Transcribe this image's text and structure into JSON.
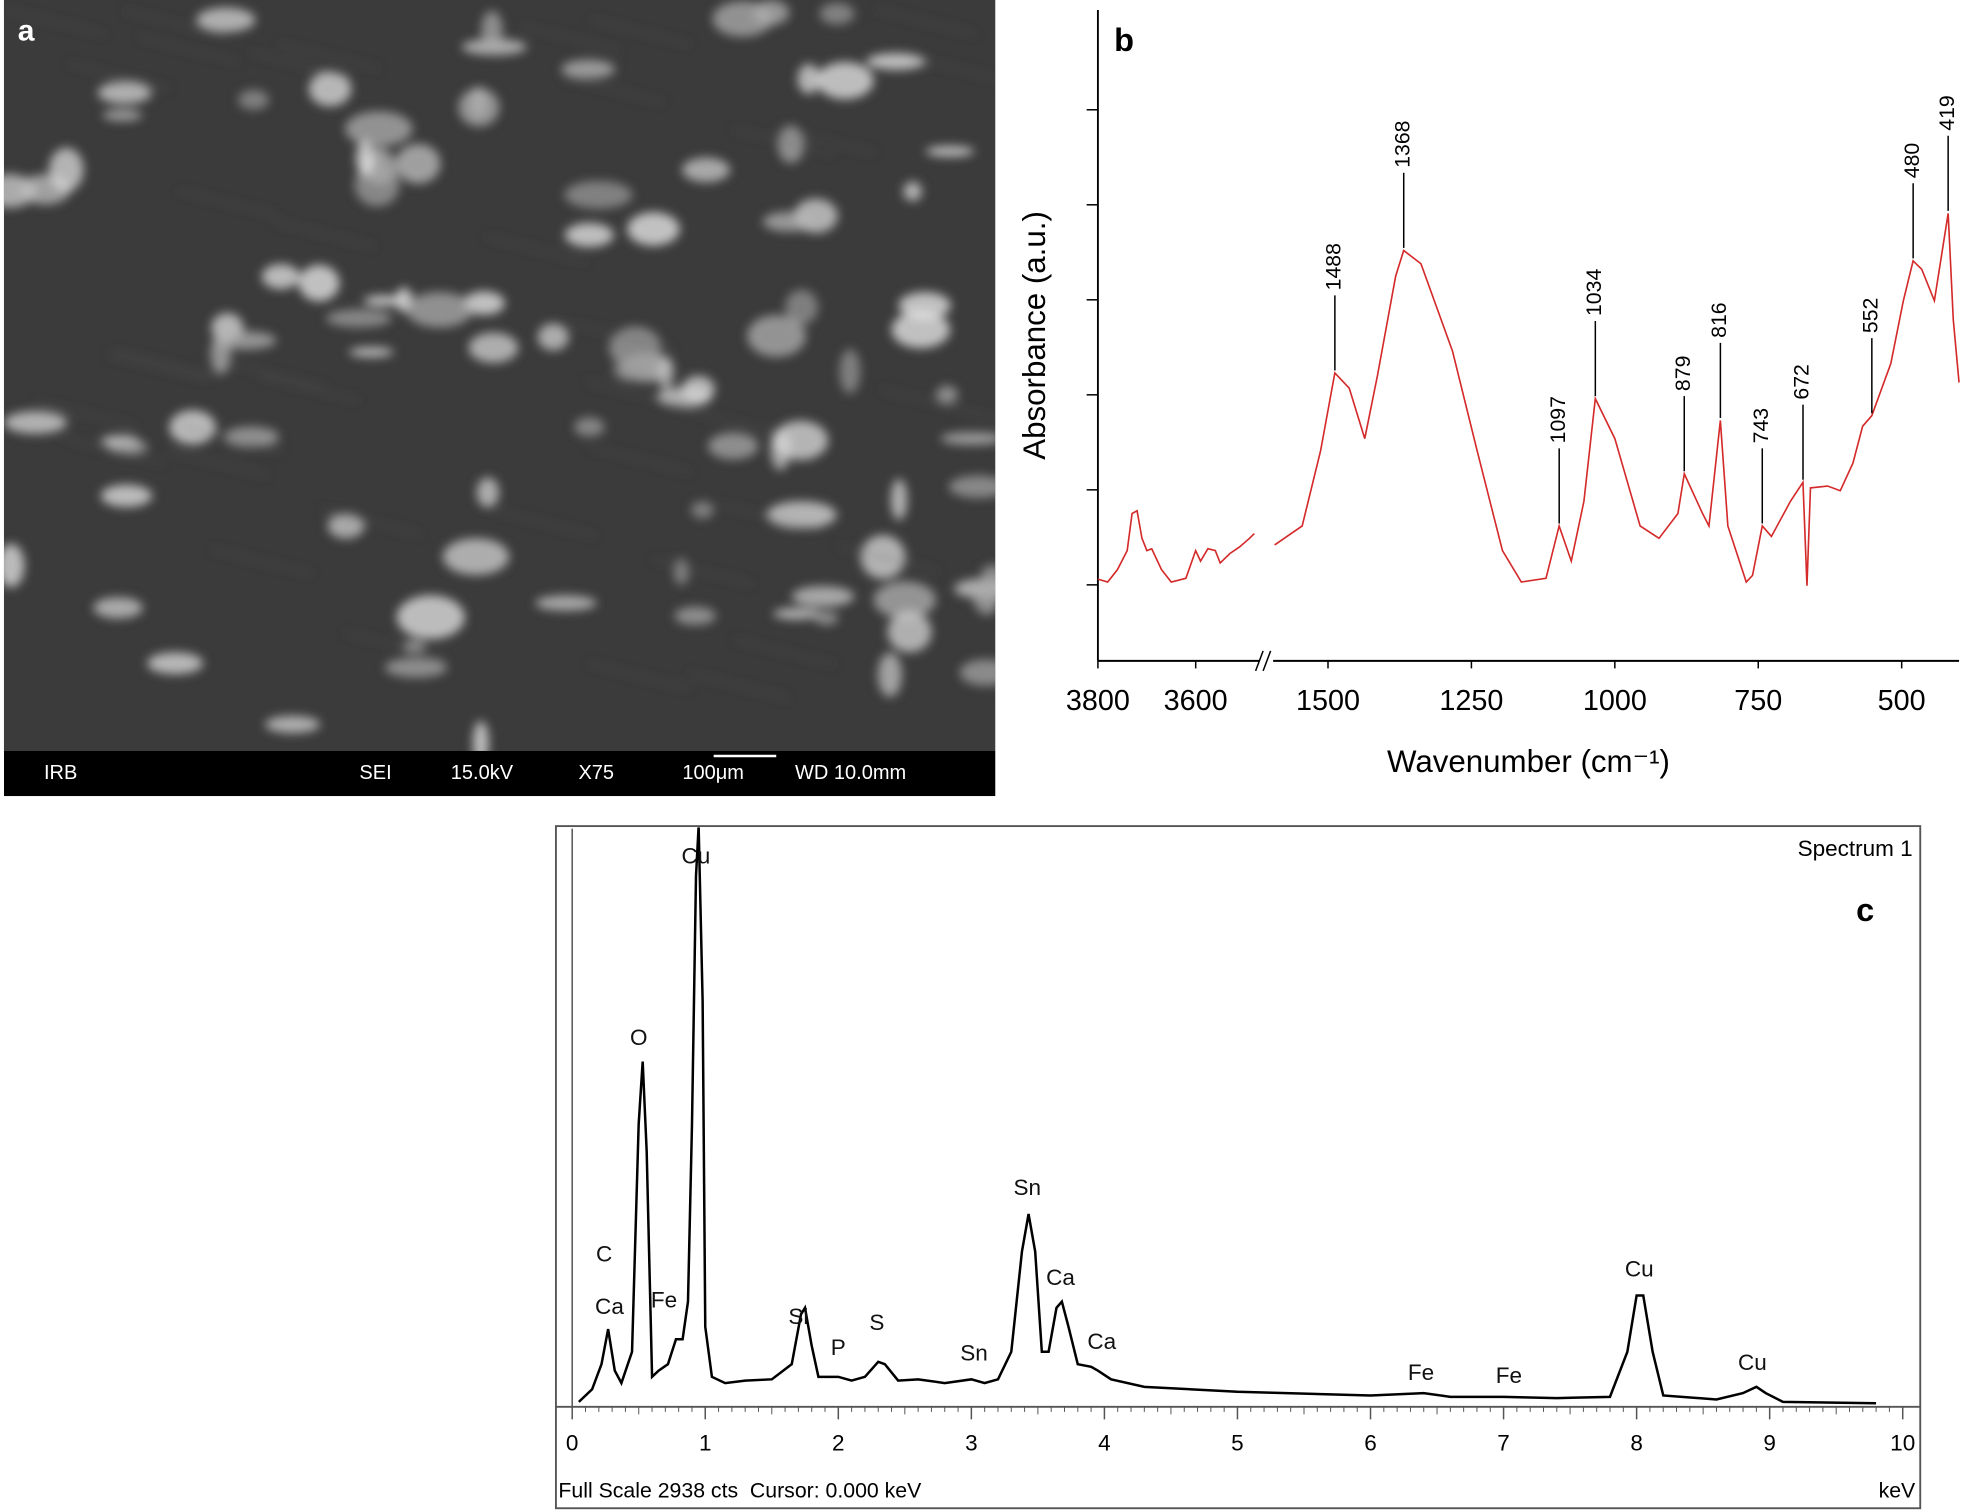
{
  "image_panel": {
    "label": "a",
    "info_bar": [
      "IRB",
      "SEI",
      "15.0kV",
      "X75",
      "100μm",
      "WD 10.0mm"
    ]
  },
  "chart_data": [
    {
      "type": "line",
      "panel_label": "b",
      "xlabel": "Wavenumber (cm⁻¹)",
      "ylabel": "Absorbance (a.u.)",
      "xlim": [
        3800,
        400
      ],
      "x_break": [
        3480,
        1600
      ],
      "xticks": [
        3800,
        3600,
        1500,
        1250,
        1000,
        750,
        500
      ],
      "ylim": [
        0.2,
        7.05
      ],
      "yticks": [
        1,
        2,
        3,
        4,
        5,
        6
      ],
      "ytick_labels": false,
      "series": [
        {
          "color": "#d42a2a",
          "x": [
            3800,
            3780,
            3760,
            3740,
            3730,
            3720,
            3710,
            3700,
            3690,
            3670,
            3650,
            3620,
            3600,
            3590,
            3575,
            3560,
            3550,
            3530,
            3510,
            3490,
            3480,
            null,
            1593,
            1545,
            1513,
            1488,
            1463,
            1436,
            1414,
            1382,
            1368,
            1338,
            1283,
            1240,
            1196,
            1163,
            1120,
            1097,
            1076,
            1054,
            1034,
            1000,
            956,
            923,
            890,
            879,
            847,
            836,
            816,
            803,
            771,
            760,
            743,
            727,
            694,
            672,
            665,
            659,
            629,
            607,
            585,
            568,
            552,
            519,
            497,
            480,
            465,
            443,
            419,
            410,
            400
          ],
          "values": [
            1.06,
            1.03,
            1.16,
            1.36,
            1.75,
            1.78,
            1.49,
            1.36,
            1.38,
            1.16,
            1.03,
            1.07,
            1.36,
            1.25,
            1.38,
            1.36,
            1.23,
            1.33,
            1.4,
            1.49,
            1.54,
            null,
            1.42,
            1.62,
            2.41,
            3.23,
            3.07,
            2.54,
            3.2,
            4.25,
            4.52,
            4.38,
            3.46,
            2.41,
            1.36,
            1.03,
            1.07,
            1.62,
            1.25,
            1.88,
            2.96,
            2.54,
            1.62,
            1.49,
            1.75,
            2.17,
            1.75,
            1.62,
            2.73,
            1.62,
            1.03,
            1.1,
            1.62,
            1.51,
            1.88,
            2.08,
            0.99,
            2.02,
            2.04,
            1.99,
            2.28,
            2.67,
            2.78,
            3.33,
            3.99,
            4.41,
            4.32,
            3.99,
            4.91,
            3.79,
            3.13
          ]
        }
      ],
      "peaks": [
        1488,
        1368,
        1097,
        1034,
        879,
        816,
        743,
        672,
        552,
        480,
        419
      ]
    },
    {
      "type": "spectrum",
      "title": "Spectrum 1",
      "panel_label": "c",
      "xlabel": "keV",
      "footer": "Full Scale 2938 cts  Cursor: 0.000 keV",
      "xlim": [
        0,
        10
      ],
      "xticks": [
        0,
        1,
        2,
        3,
        4,
        5,
        6,
        7,
        8,
        9,
        10
      ],
      "ylim": [
        0,
        2938
      ],
      "color": "#000000",
      "x": [
        0.05,
        0.15,
        0.22,
        0.27,
        0.32,
        0.37,
        0.45,
        0.5,
        0.53,
        0.56,
        0.6,
        0.65,
        0.72,
        0.78,
        0.83,
        0.87,
        0.9,
        0.93,
        0.95,
        0.98,
        1.0,
        1.05,
        1.15,
        1.3,
        1.5,
        1.65,
        1.72,
        1.75,
        1.8,
        1.85,
        2.0,
        2.1,
        2.2,
        2.3,
        2.35,
        2.45,
        2.6,
        2.8,
        3.0,
        3.1,
        3.2,
        3.3,
        3.38,
        3.43,
        3.48,
        3.53,
        3.58,
        3.64,
        3.68,
        3.73,
        3.8,
        3.9,
        3.95,
        4.05,
        4.3,
        5,
        6,
        6.4,
        6.6,
        7.0,
        7.4,
        7.8,
        7.93,
        8.0,
        8.05,
        8.12,
        8.2,
        8.6,
        8.8,
        8.9,
        8.97,
        9.1,
        9.8
      ],
      "values": [
        13,
        76,
        204,
        382,
        172,
        108,
        267,
        1424,
        1742,
        1285,
        140,
        172,
        204,
        331,
        331,
        522,
        1424,
        2684,
        2938,
        2048,
        394,
        140,
        108,
        121,
        127,
        204,
        458,
        490,
        299,
        140,
        140,
        121,
        140,
        216,
        204,
        121,
        127,
        108,
        127,
        108,
        127,
        267,
        776,
        967,
        776,
        267,
        267,
        490,
        522,
        394,
        204,
        191,
        172,
        127,
        89,
        64,
        45,
        57,
        38,
        38,
        32,
        38,
        267,
        553,
        553,
        267,
        45,
        25,
        57,
        89,
        57,
        13,
        6
      ],
      "annotations": [
        {
          "text": "Cu",
          "x": 0.93,
          "y": 2779
        },
        {
          "text": "O",
          "x": 0.5,
          "y": 1857
        },
        {
          "text": "C",
          "x": 0.24,
          "y": 757
        },
        {
          "text": "Ca",
          "x": 0.28,
          "y": 490
        },
        {
          "text": "Fe",
          "x": 0.69,
          "y": 522
        },
        {
          "text": "Si",
          "x": 1.7,
          "y": 439
        },
        {
          "text": "P",
          "x": 2.0,
          "y": 280
        },
        {
          "text": "S",
          "x": 2.29,
          "y": 407
        },
        {
          "text": "Sn",
          "x": 3.02,
          "y": 254
        },
        {
          "text": "Sn",
          "x": 3.42,
          "y": 1094
        },
        {
          "text": "Ca",
          "x": 3.67,
          "y": 636
        },
        {
          "text": "Ca",
          "x": 3.98,
          "y": 312
        },
        {
          "text": "Fe",
          "x": 6.38,
          "y": 153
        },
        {
          "text": "Fe",
          "x": 7.04,
          "y": 140
        },
        {
          "text": "Cu",
          "x": 8.02,
          "y": 681
        },
        {
          "text": "Cu",
          "x": 8.87,
          "y": 204
        }
      ]
    }
  ]
}
